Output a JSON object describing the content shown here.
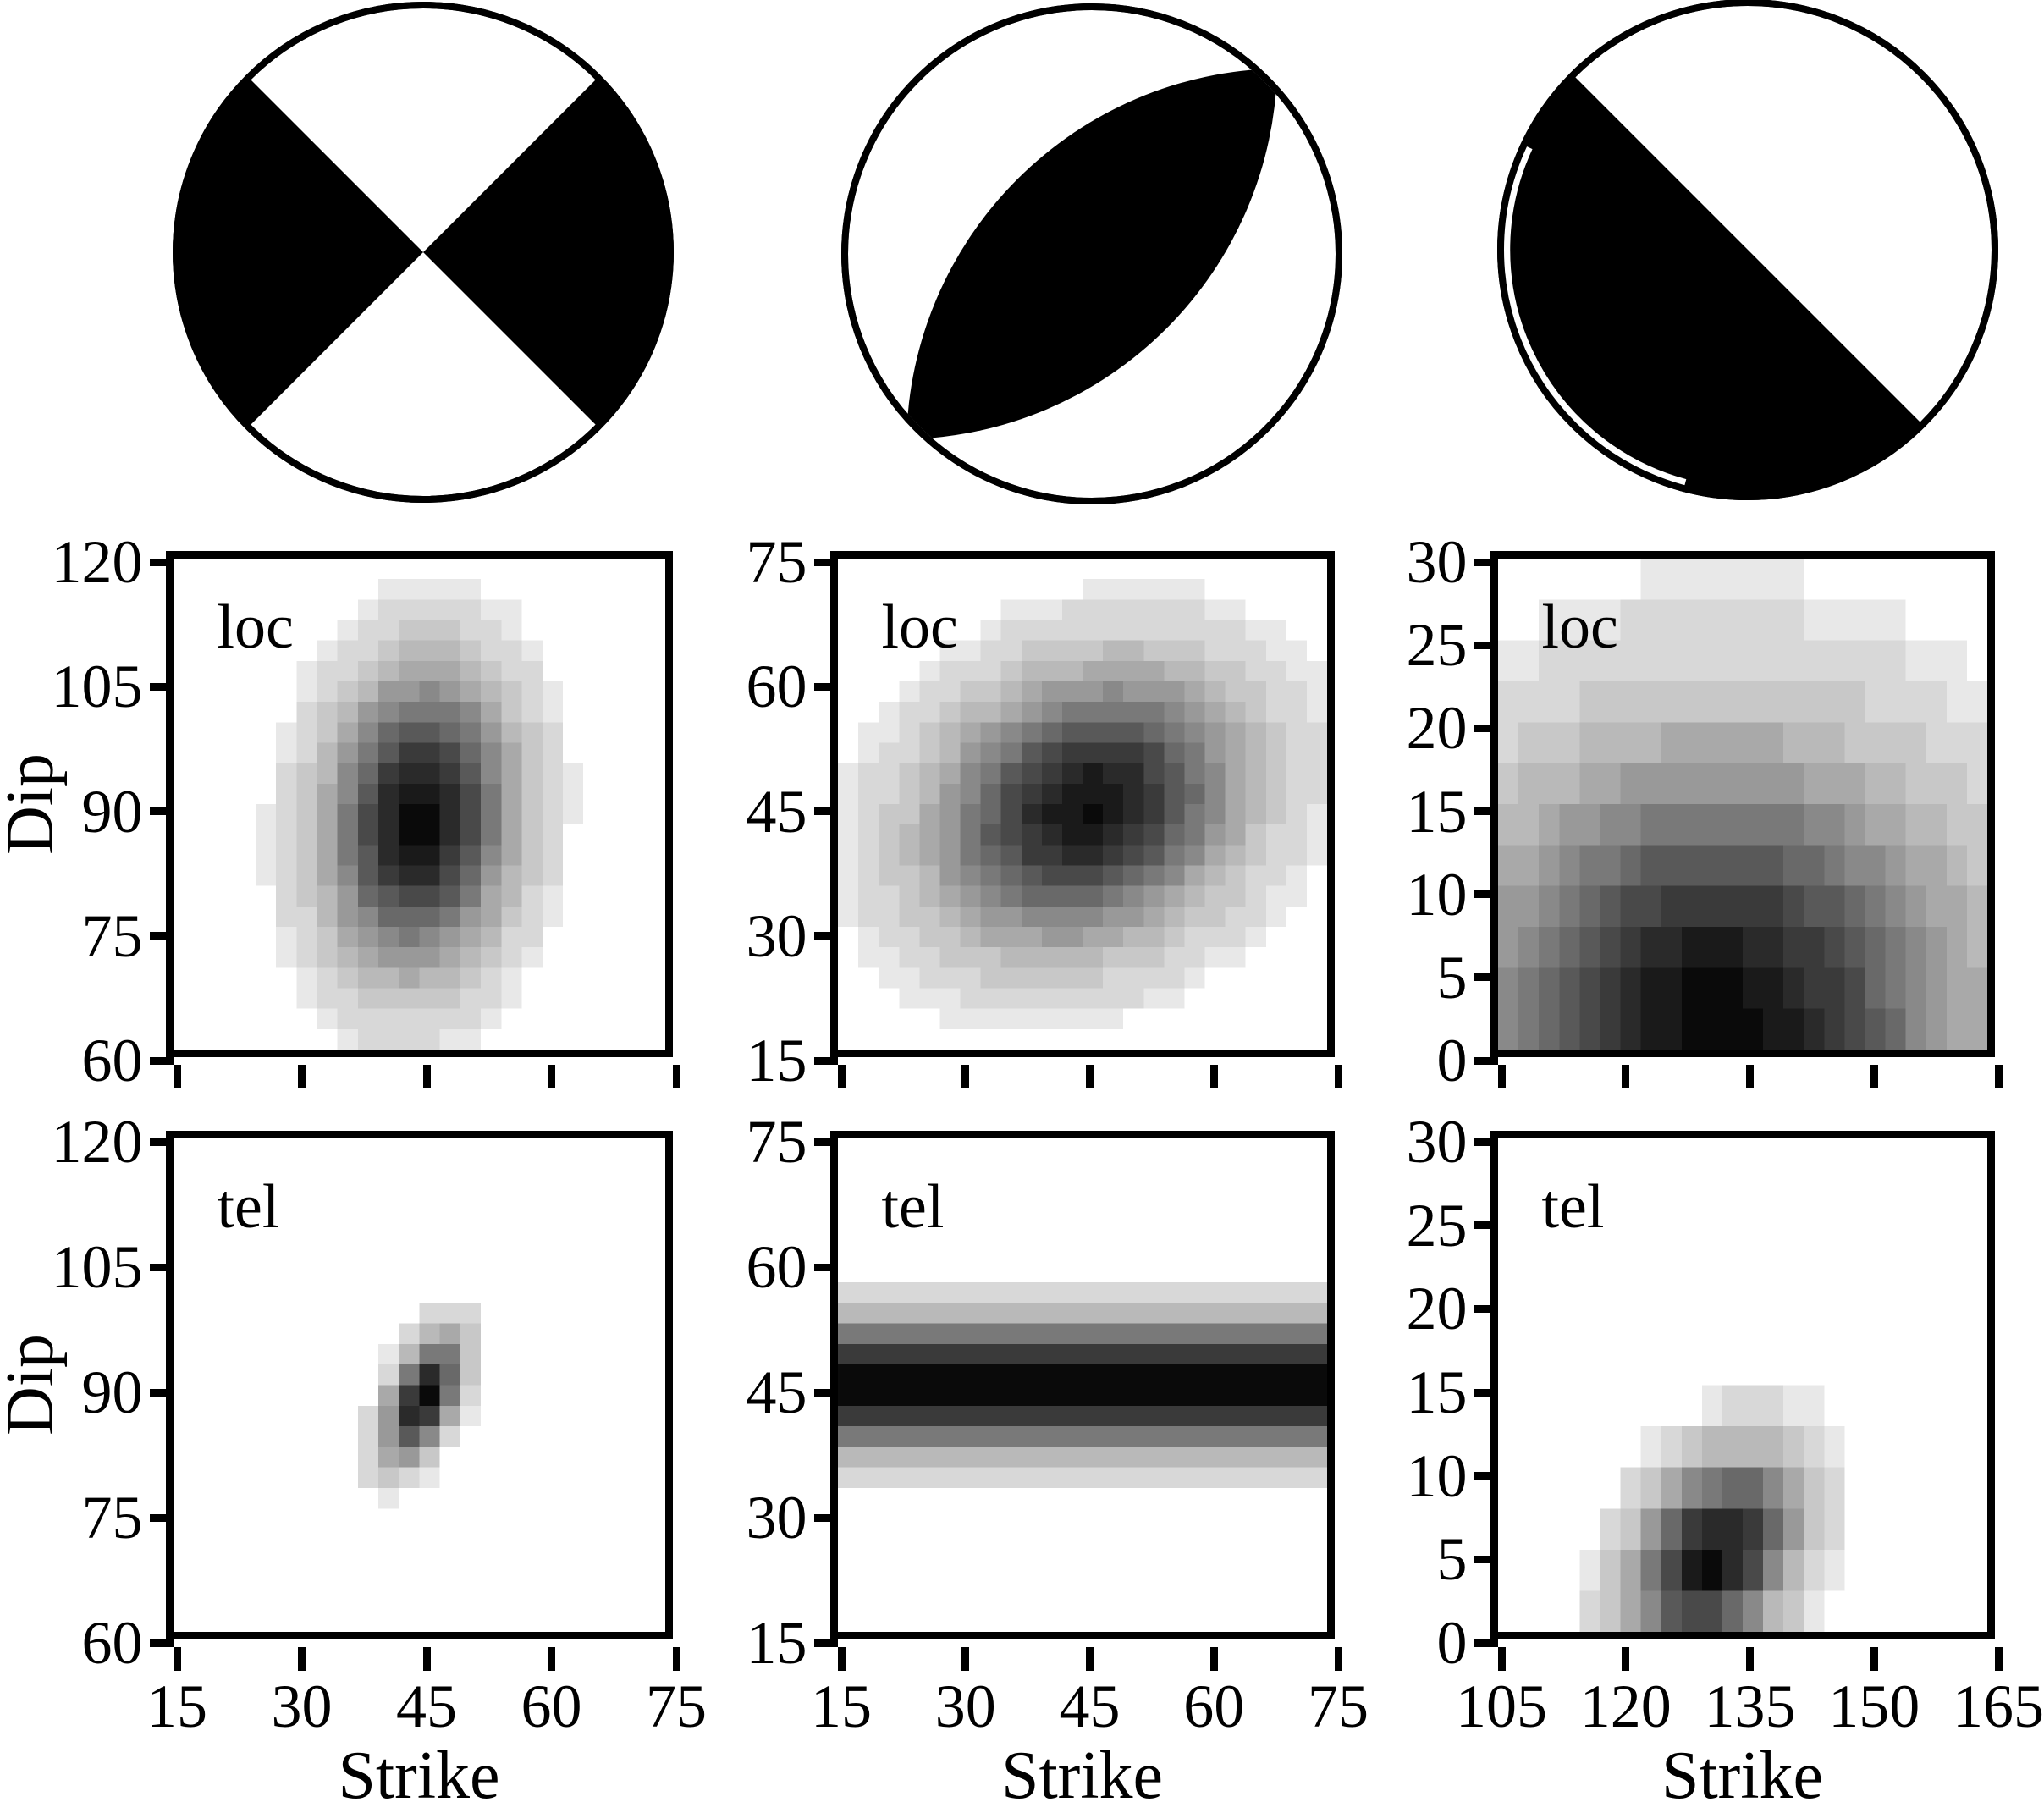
{
  "figure": {
    "background": "#ffffff",
    "ink": "#000000",
    "description": "Focal mechanism beachballs with strike-dip probability heatmaps for local (loc) and teleseismic (tel) data"
  },
  "beachballs": [
    {
      "id": "beachball-strike-slip",
      "description": "strike-slip mechanism: black east and west quadrants, white north and south, nodal planes crossing at center at 45 degrees"
    },
    {
      "id": "beachball-thrust-lens",
      "description": "dip-slip mechanism: black lens from lower-left rim to upper-right rim, white crescents top-left and bottom-right"
    },
    {
      "id": "beachball-shallow-thrust",
      "description": "shallow thrust mechanism: black lower-left half bounded by straight 45-degree diagonal nodal plane, thin white sliver along lower-left rim"
    }
  ],
  "labels": {
    "dip_axis": "Dip",
    "strike_axis": "Strike",
    "local_panel": "loc",
    "teleseismic_panel": "tel"
  },
  "chart_data": [
    {
      "id": "loc-1",
      "type": "heatmap",
      "row": 0,
      "col": 0,
      "panel_label": "loc",
      "xlabel": "",
      "ylabel": "Dip",
      "xlim": [
        15,
        75
      ],
      "ylim": [
        60,
        120
      ],
      "xticks": [
        15,
        30,
        45,
        60,
        75
      ],
      "yticks": [
        60,
        75,
        90,
        105,
        120
      ],
      "show_xtick_labels": false,
      "cell_deg": 2.5,
      "grid": "off",
      "colormap": "white-to-black",
      "gaussian": {
        "cx": 45,
        "cy": 88,
        "sx": 7.5,
        "sy": 12,
        "rho": 0.1,
        "amp": 0.97
      },
      "summary": "vertically elongated blob, peak near strike 45 dip 88, spans strike 27-63, dip 61-118"
    },
    {
      "id": "loc-2",
      "type": "heatmap",
      "row": 0,
      "col": 1,
      "panel_label": "loc",
      "xlabel": "",
      "ylabel": "",
      "xlim": [
        15,
        75
      ],
      "ylim": [
        15,
        75
      ],
      "xticks": [
        15,
        30,
        45,
        60,
        75
      ],
      "yticks": [
        15,
        30,
        45,
        60,
        75
      ],
      "show_xtick_labels": false,
      "cell_deg": 2.5,
      "grid": "off",
      "colormap": "white-to-black",
      "gaussian": {
        "cx": 45.5,
        "cy": 44.5,
        "sx": 12.5,
        "sy": 11,
        "rho": 0.2,
        "amp": 0.94
      },
      "summary": "broad round blob, peak near strike 45 dip 45, spans strike 18-75, dip 17-73"
    },
    {
      "id": "loc-3",
      "type": "heatmap",
      "row": 0,
      "col": 2,
      "panel_label": "loc",
      "xlabel": "",
      "ylabel": "",
      "xlim": [
        105,
        165
      ],
      "ylim": [
        0,
        30
      ],
      "xticks": [
        105,
        120,
        135,
        150,
        165
      ],
      "yticks": [
        0,
        5,
        10,
        15,
        20,
        25,
        30
      ],
      "show_xtick_labels": false,
      "cell_deg": 2.5,
      "grid": "off",
      "colormap": "white-to-black",
      "gaussian": {
        "cx": 132,
        "cy": 1.5,
        "sx": 20,
        "sy": 11,
        "rho": 0,
        "amp": 0.97
      },
      "summary": "dome-shaped distribution darkest along dip 0-8 centered near strike 132, fading upward to dip 29"
    },
    {
      "id": "tel-1",
      "type": "heatmap",
      "row": 1,
      "col": 0,
      "panel_label": "tel",
      "xlabel": "Strike",
      "ylabel": "Dip",
      "xlim": [
        15,
        75
      ],
      "ylim": [
        60,
        120
      ],
      "xticks": [
        15,
        30,
        45,
        60,
        75
      ],
      "yticks": [
        60,
        75,
        90,
        105,
        120
      ],
      "show_xtick_labels": true,
      "cell_deg": 2.5,
      "grid": "off",
      "colormap": "white-to-black",
      "gaussian": {
        "cx": 45.5,
        "cy": 88.5,
        "sx": 3.2,
        "sy": 5,
        "rho": 0.55,
        "amp": 1.0
      },
      "summary": "small tilted compact blob, peak near strike 45 dip 89, spans strike 38-54, dip 78-101"
    },
    {
      "id": "tel-2",
      "type": "heatmap",
      "row": 1,
      "col": 1,
      "panel_label": "tel",
      "xlabel": "Strike",
      "ylabel": "",
      "xlim": [
        15,
        75
      ],
      "ylim": [
        15,
        75
      ],
      "xticks": [
        15,
        30,
        45,
        60,
        75
      ],
      "yticks": [
        15,
        30,
        45,
        60,
        75
      ],
      "show_xtick_labels": true,
      "cell_deg": 2.5,
      "grid": "off",
      "colormap": "white-to-black",
      "gaussian": {
        "cx": 45,
        "cy": 45,
        "sx": 1000,
        "sy": 5.3,
        "rho": 0,
        "amp": 1.0
      },
      "summary": "horizontal band spanning all strikes, darkest at dip 42-49, extends dip 31-58"
    },
    {
      "id": "tel-3",
      "type": "heatmap",
      "row": 1,
      "col": 2,
      "panel_label": "tel",
      "xlabel": "Strike",
      "ylabel": "",
      "xlim": [
        105,
        165
      ],
      "ylim": [
        0,
        30
      ],
      "xticks": [
        105,
        120,
        135,
        150,
        165
      ],
      "yticks": [
        0,
        5,
        10,
        15,
        20,
        25,
        30
      ],
      "show_xtick_labels": true,
      "cell_deg": 2.5,
      "grid": "off",
      "colormap": "white-to-black",
      "gaussian": {
        "cx": 131.5,
        "cy": 4.5,
        "sx": 6.8,
        "sy": 4.2,
        "rho": 0.35,
        "amp": 0.96
      },
      "summary": "compact blob near bottom, peak near strike 133 dip 5, spans strike 113-147, dip 0-15"
    }
  ]
}
